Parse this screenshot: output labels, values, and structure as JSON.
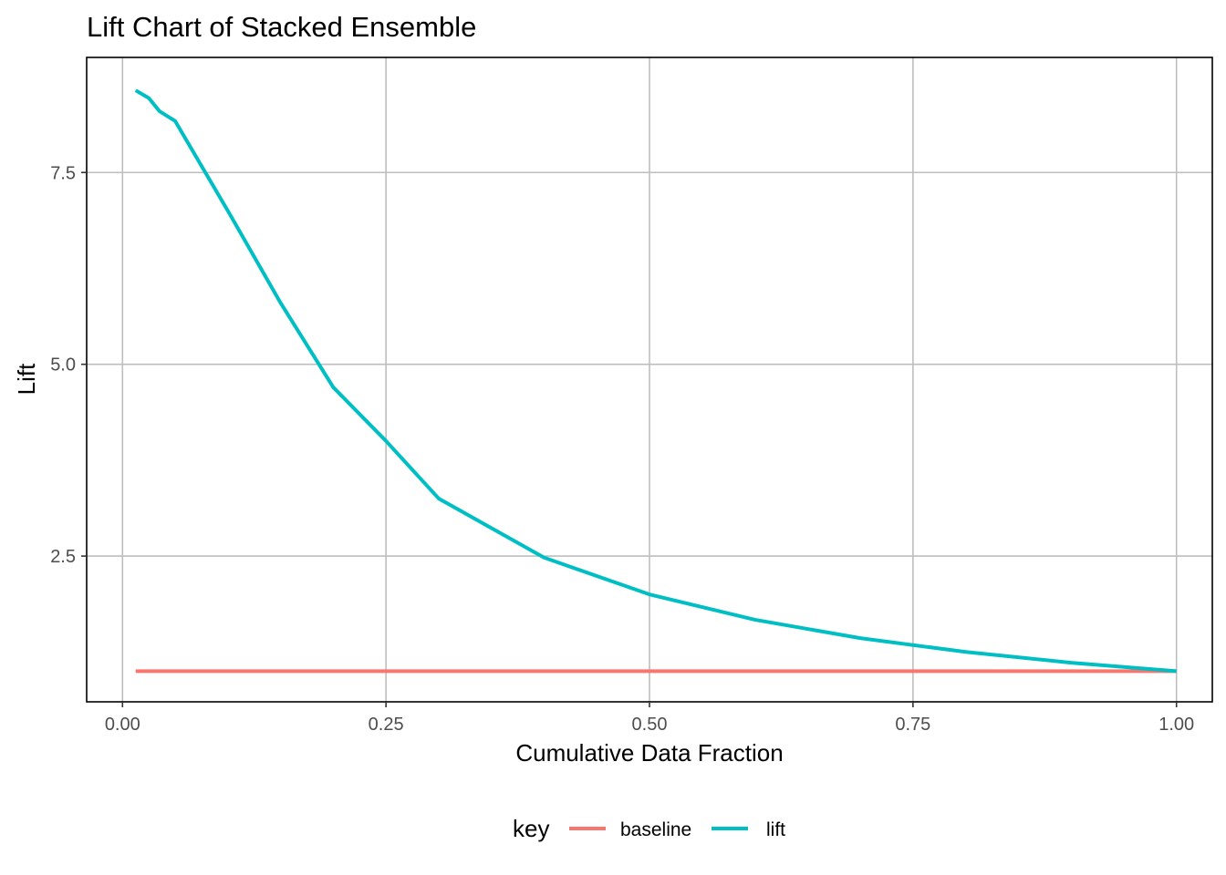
{
  "chart_data": {
    "type": "line",
    "title": "Lift Chart of Stacked Ensemble",
    "xlabel": "Cumulative Data Fraction",
    "ylabel": "Lift",
    "xlim": [
      -0.034,
      1.034
    ],
    "ylim": [
      0.6,
      9.0
    ],
    "x_ticks": [
      0.0,
      0.25,
      0.5,
      0.75,
      1.0
    ],
    "x_tick_labels": [
      "0.00",
      "0.25",
      "0.50",
      "0.75",
      "1.00"
    ],
    "y_ticks": [
      2.5,
      5.0,
      7.5
    ],
    "y_tick_labels": [
      "2.5",
      "5.0",
      "7.5"
    ],
    "grid": true,
    "legend": {
      "title": "key",
      "placement": "bottom",
      "entries": [
        "baseline",
        "lift"
      ]
    },
    "series": [
      {
        "name": "baseline",
        "color": "#F8766D",
        "x": [
          0.0125,
          0.1,
          0.2,
          0.3,
          0.4,
          0.5,
          0.6,
          0.7,
          0.8,
          0.9,
          1.0
        ],
        "y": [
          1.0,
          1.0,
          1.0,
          1.0,
          1.0,
          1.0,
          1.0,
          1.0,
          1.0,
          1.0,
          1.0
        ]
      },
      {
        "name": "lift",
        "color": "#00BFC4",
        "x": [
          0.0125,
          0.025,
          0.035,
          0.05,
          0.1,
          0.15,
          0.2,
          0.25,
          0.3,
          0.4,
          0.5,
          0.6,
          0.7,
          0.8,
          0.9,
          1.0
        ],
        "y": [
          8.57,
          8.47,
          8.3,
          8.17,
          7.0,
          5.8,
          4.7,
          4.0,
          3.25,
          2.48,
          2.0,
          1.67,
          1.43,
          1.25,
          1.11,
          1.0
        ]
      }
    ]
  }
}
